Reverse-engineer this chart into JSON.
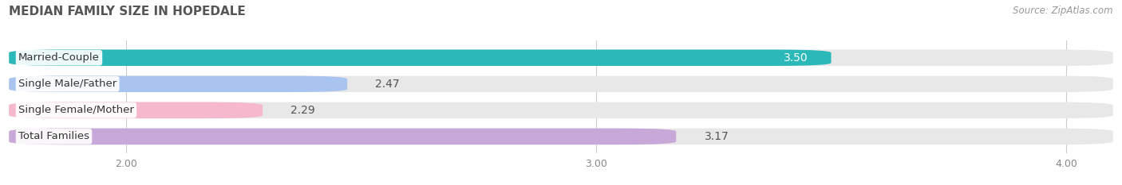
{
  "title": "MEDIAN FAMILY SIZE IN HOPEDALE",
  "source": "Source: ZipAtlas.com",
  "categories": [
    "Married-Couple",
    "Single Male/Father",
    "Single Female/Mother",
    "Total Families"
  ],
  "values": [
    3.5,
    2.47,
    2.29,
    3.17
  ],
  "bar_colors": [
    "#2ab8b8",
    "#aac4f0",
    "#f5b8cc",
    "#c8a8d8"
  ],
  "bar_bg_color": "#e8e8e8",
  "value_inside": [
    true,
    false,
    false,
    false
  ],
  "xmin": 1.75,
  "xmax": 4.1,
  "xticks": [
    2.0,
    3.0,
    4.0
  ],
  "background_color": "#ffffff",
  "title_fontsize": 11,
  "source_fontsize": 8.5,
  "bar_height": 0.62,
  "bar_label_fontsize": 9.5,
  "value_fontsize": 10
}
